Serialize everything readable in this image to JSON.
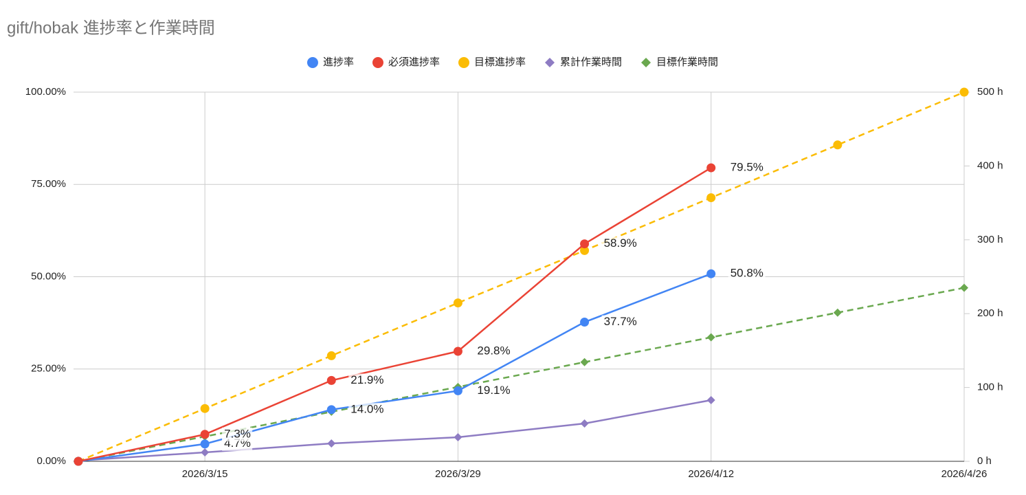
{
  "chart_data": {
    "type": "line",
    "title": "gift/hobak 進捗率と作業時間",
    "x": [
      "2026/3/8",
      "2026/3/15",
      "2026/3/22",
      "2026/3/29",
      "2026/4/5",
      "2026/4/12",
      "2026/4/19",
      "2026/4/26"
    ],
    "xlim": [
      "2026/3/8",
      "2026/4/26"
    ],
    "xticks": [
      "2026/3/15",
      "2026/3/29",
      "2026/4/12",
      "2026/4/26"
    ],
    "ylim": [
      0,
      100
    ],
    "yticks": [
      {
        "value": 0,
        "label": "0.00%"
      },
      {
        "value": 25,
        "label": "25.00%"
      },
      {
        "value": 50,
        "label": "50.00%"
      },
      {
        "value": 75,
        "label": "75.00%"
      },
      {
        "value": 100,
        "label": "100.00%"
      }
    ],
    "y2lim": [
      0,
      500
    ],
    "y2ticks": [
      {
        "value": 0,
        "label": "0 h"
      },
      {
        "value": 100,
        "label": "100 h"
      },
      {
        "value": 200,
        "label": "200 h"
      },
      {
        "value": 300,
        "label": "300 h"
      },
      {
        "value": 400,
        "label": "400 h"
      },
      {
        "value": 500,
        "label": "500 h"
      }
    ],
    "grid": true,
    "legend": "top",
    "series": [
      {
        "name": "進捗率",
        "color": "#4285f4",
        "marker": "circle",
        "dashed": false,
        "values": [
          0,
          4.7,
          14.0,
          19.1,
          37.7,
          50.8,
          null,
          null
        ],
        "value_labels": [
          null,
          "4.7%",
          "14.0%",
          "19.1%",
          "37.7%",
          "50.8%",
          null,
          null
        ]
      },
      {
        "name": "必須進捗率",
        "color": "#ea4335",
        "marker": "circle",
        "dashed": false,
        "values": [
          0,
          7.3,
          21.9,
          29.8,
          58.9,
          79.5,
          null,
          null
        ],
        "value_labels": [
          null,
          "7.3%",
          "21.9%",
          "29.8%",
          "58.9%",
          "79.5%",
          null,
          null
        ]
      },
      {
        "name": "目標進捗率",
        "color": "#fbbc04",
        "marker": "circle",
        "dashed": true,
        "values": [
          0,
          14.3,
          28.6,
          42.9,
          57.1,
          71.4,
          85.7,
          100
        ]
      },
      {
        "name": "累計作業時間",
        "color": "#8e7cc3",
        "marker": "diamond",
        "dashed": false,
        "axis": "y2",
        "values": [
          1,
          12.1,
          24.2,
          32.6,
          51.2,
          82.9,
          null,
          null
        ]
      },
      {
        "name": "目標作業時間",
        "color": "#6aa84f",
        "marker": "diamond",
        "dashed": true,
        "axis": "y2",
        "values": [
          0,
          33.6,
          67.1,
          100.7,
          134.3,
          167.9,
          201.4,
          235
        ]
      }
    ]
  }
}
